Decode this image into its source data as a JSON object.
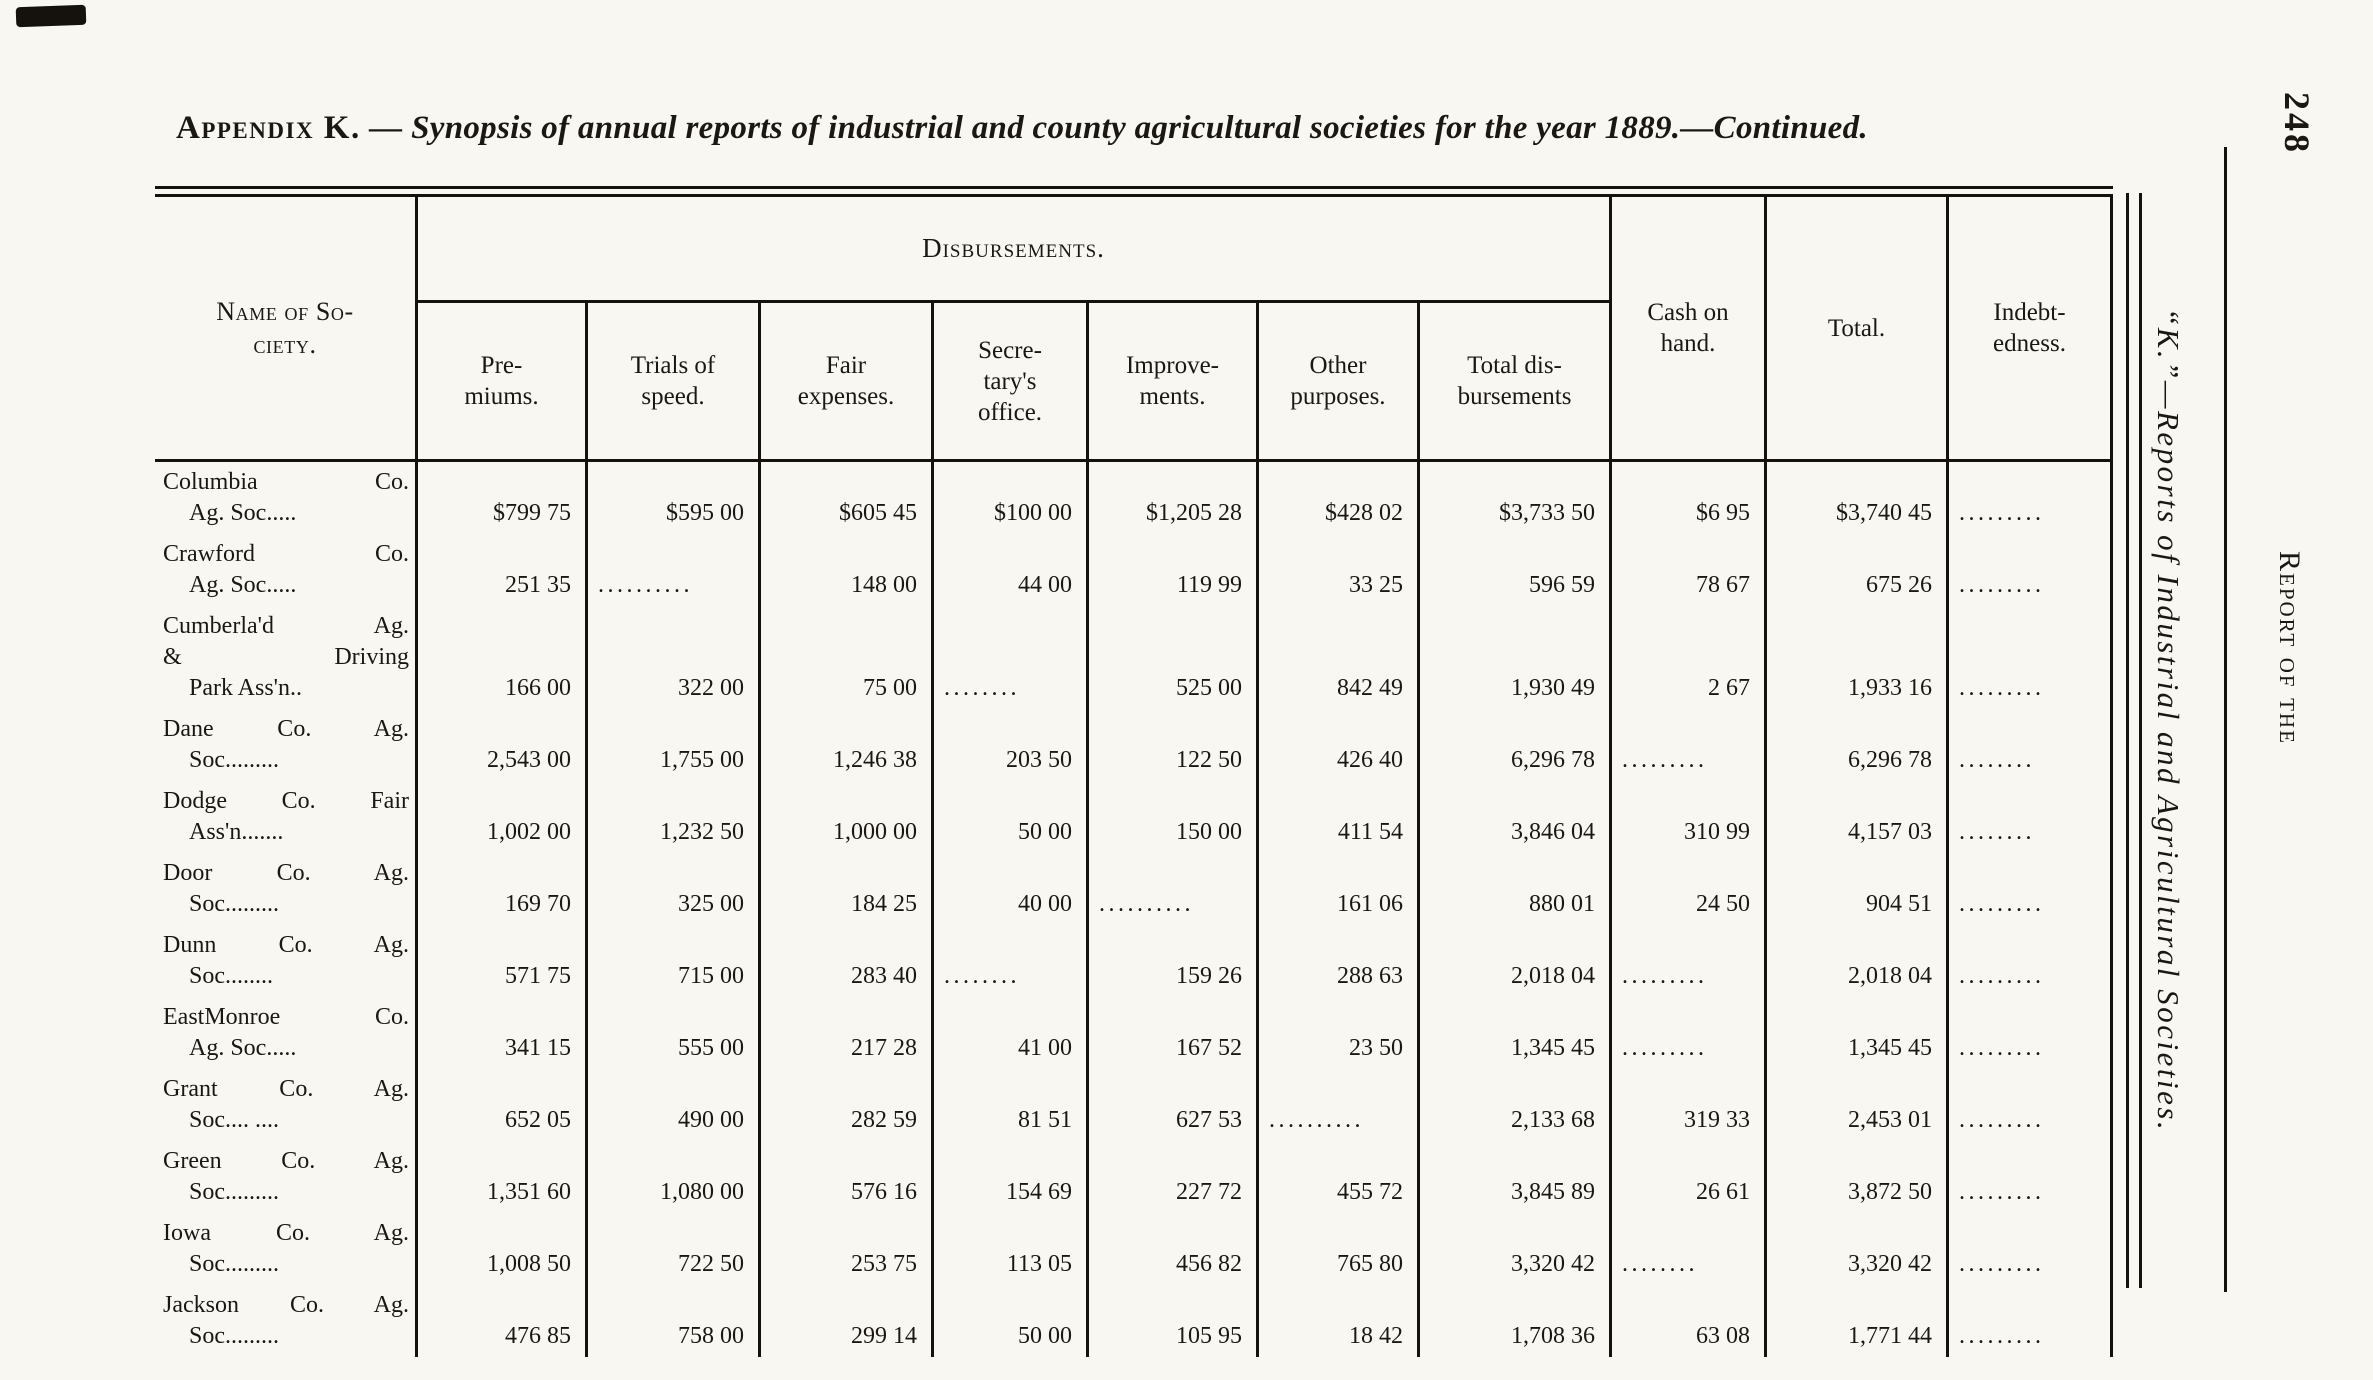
{
  "page": {
    "title_prefix": "Appendix K.",
    "title_rest": " — Synopsis of annual reports of industrial and county agricultural societies for the year 1889.—Continued.",
    "page_number": "248",
    "margin_caption": "“K.”—Reports of Industrial and Agricultural Societies.",
    "margin_running_head": "Report of the"
  },
  "table": {
    "name_header_lines": [
      "Name of So-",
      "ciety."
    ],
    "group_header": "Disbursements.",
    "sub_headers": [
      [
        "Pre-",
        "miums."
      ],
      [
        "Trials of",
        "speed."
      ],
      [
        "Fair",
        "expenses."
      ],
      [
        "Secre-",
        "tary's",
        "office."
      ],
      [
        "Improve-",
        "ments."
      ],
      [
        "Other",
        "purposes."
      ],
      [
        "Total dis-",
        "bursements"
      ]
    ],
    "right_headers": [
      [
        "Cash on",
        "hand."
      ],
      [
        "Total."
      ],
      [
        "Indebt-",
        "edness."
      ]
    ],
    "rows": [
      {
        "name_lines": [
          "Columbia Co.",
          "Ag. Soc....."
        ],
        "values": [
          "$799 75",
          "$595 00",
          "$605 45",
          "$100 00",
          "$1,205 28",
          "$428 02",
          "$3,733 50",
          "$6 95",
          "$3,740 45",
          "........."
        ]
      },
      {
        "name_lines": [
          "Crawford Co.",
          "Ag. Soc....."
        ],
        "values": [
          "251 35",
          "..........",
          "148 00",
          "44 00",
          "119 99",
          "33 25",
          "596 59",
          "78 67",
          "675 26",
          "........."
        ]
      },
      {
        "name_lines": [
          "Cumberla'd Ag.",
          "& Driving",
          "Park Ass'n.."
        ],
        "values": [
          "166 00",
          "322 00",
          "75 00",
          "........",
          "525 00",
          "842 49",
          "1,930 49",
          "2 67",
          "1,933 16",
          "........."
        ]
      },
      {
        "name_lines": [
          "Dane Co. Ag.",
          "Soc........."
        ],
        "values": [
          "2,543 00",
          "1,755 00",
          "1,246 38",
          "203 50",
          "122 50",
          "426 40",
          "6,296 78",
          ".........",
          "6,296 78",
          "........"
        ]
      },
      {
        "name_lines": [
          "Dodge Co. Fair",
          "Ass'n......."
        ],
        "values": [
          "1,002 00",
          "1,232 50",
          "1,000 00",
          "50 00",
          "150 00",
          "411 54",
          "3,846 04",
          "310 99",
          "4,157 03",
          "........"
        ]
      },
      {
        "name_lines": [
          "Door Co. Ag.",
          "Soc........."
        ],
        "values": [
          "169 70",
          "325 00",
          "184 25",
          "40 00",
          "..........",
          "161 06",
          "880 01",
          "24 50",
          "904 51",
          "........."
        ]
      },
      {
        "name_lines": [
          "Dunn Co. Ag.",
          "Soc........"
        ],
        "values": [
          "571 75",
          "715 00",
          "283 40",
          "........",
          "159 26",
          "288 63",
          "2,018 04",
          ".........",
          "2,018 04",
          "........."
        ]
      },
      {
        "name_lines": [
          "EastMonroe Co.",
          "Ag. Soc....."
        ],
        "values": [
          "341 15",
          "555 00",
          "217 28",
          "41 00",
          "167 52",
          "23 50",
          "1,345 45",
          ".........",
          "1,345 45",
          "........."
        ]
      },
      {
        "name_lines": [
          "Grant Co. Ag.",
          "Soc.... ...."
        ],
        "values": [
          "652 05",
          "490 00",
          "282 59",
          "81 51",
          "627 53",
          "..........",
          "2,133 68",
          "319 33",
          "2,453 01",
          "........."
        ]
      },
      {
        "name_lines": [
          "Green Co. Ag.",
          "Soc........."
        ],
        "values": [
          "1,351 60",
          "1,080 00",
          "576 16",
          "154 69",
          "227 72",
          "455 72",
          "3,845 89",
          "26 61",
          "3,872 50",
          "........."
        ]
      },
      {
        "name_lines": [
          "Iowa Co. Ag.",
          "Soc........."
        ],
        "values": [
          "1,008 50",
          "722 50",
          "253 75",
          "113 05",
          "456 82",
          "765 80",
          "3,320 42",
          "........",
          "3,320 42",
          "........."
        ]
      },
      {
        "name_lines": [
          "Jackson Co. Ag.",
          "Soc........."
        ],
        "values": [
          "476 85",
          "758 00",
          "299 14",
          "50 00",
          "105 95",
          "18 42",
          "1,708 36",
          "63 08",
          "1,771 44",
          "........."
        ]
      }
    ]
  }
}
